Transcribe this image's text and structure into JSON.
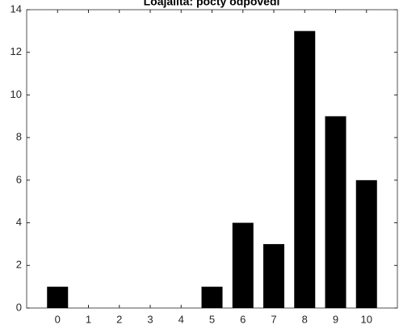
{
  "chart_data": {
    "type": "bar",
    "title": "Loajalita: počty odpovědí",
    "x": [
      0,
      1,
      2,
      3,
      4,
      5,
      6,
      7,
      8,
      9,
      10
    ],
    "values": [
      1,
      0,
      0,
      0,
      0,
      1,
      4,
      3,
      13,
      9,
      6
    ],
    "color": "#000000",
    "xlim": [
      -1,
      11
    ],
    "xticks": [
      0,
      1,
      2,
      3,
      4,
      5,
      6,
      7,
      8,
      9,
      10
    ],
    "ylim": [
      0,
      14
    ],
    "yticks": [
      0,
      2,
      4,
      6,
      8,
      10,
      12,
      14
    ]
  }
}
